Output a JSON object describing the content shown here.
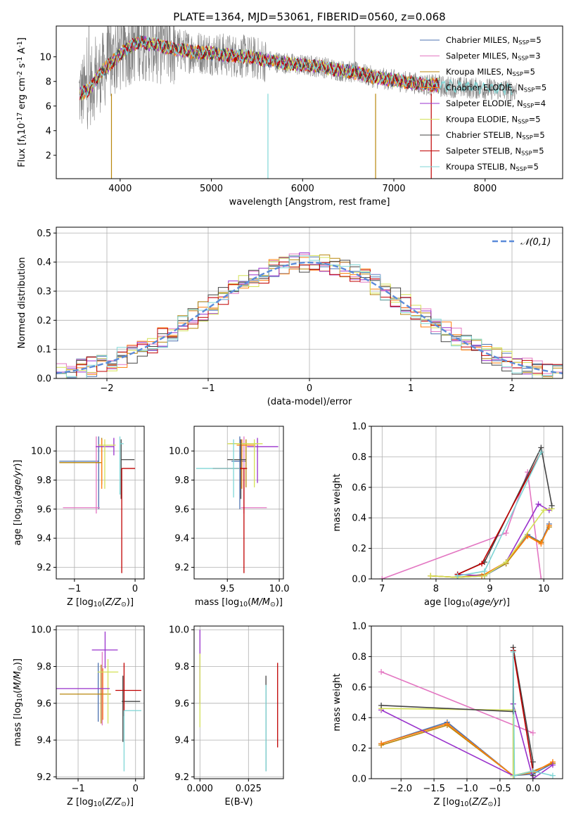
{
  "colors": {
    "Chabrier MILES": "#4c72b0",
    "Salpeter MILES": "#e377c2",
    "Kroupa MILES": "#b8860b",
    "Chabrier ELODIE": "#ff7f0e",
    "Salpeter ELODIE": "#9932cc",
    "Kroupa ELODIE": "#d4e157",
    "Chabrier STELIB": "#444444",
    "Salpeter STELIB": "#c00000",
    "Kroupa STELIB": "#7fd6d6",
    "observed": "#808080",
    "normal_curve": "#5b8bd9"
  },
  "chart_data": [
    {
      "id": "spectrum",
      "type": "line",
      "title": "PLATE=1364, MJD=53061, FIBERID=0560, z=0.068",
      "xlabel": "wavelength [Angstrom, rest frame]",
      "ylabel": "Flux [f$_\\lambda$10$^{-17}$ erg cm$^{-2}$ s$^{-1}$ A$^{-1}$]",
      "xlim": [
        3300,
        8850
      ],
      "ylim": [
        0.1,
        12.5
      ],
      "xticks": [
        4000,
        5000,
        6000,
        7000,
        8000
      ],
      "yticks": [
        2,
        4,
        6,
        8,
        10
      ],
      "legend_position": "upper right",
      "legend": [
        {
          "name": "Chabrier MILES",
          "n_ssp": 5
        },
        {
          "name": "Salpeter MILES",
          "n_ssp": 3
        },
        {
          "name": "Kroupa MILES",
          "n_ssp": 5
        },
        {
          "name": "Chabrier ELODIE",
          "n_ssp": 5
        },
        {
          "name": "Salpeter ELODIE",
          "n_ssp": 4
        },
        {
          "name": "Kroupa ELODIE",
          "n_ssp": 5
        },
        {
          "name": "Chabrier STELIB",
          "n_ssp": 5
        },
        {
          "name": "Salpeter STELIB",
          "n_ssp": 5
        },
        {
          "name": "Kroupa STELIB",
          "n_ssp": 5
        }
      ],
      "continuum": {
        "x": [
          3560,
          3650,
          3800,
          3900,
          4000,
          4100,
          4200,
          4400,
          4600,
          4800,
          5000,
          5200,
          5400,
          5600,
          5800,
          6000,
          6200,
          6400,
          6600,
          6800,
          7000,
          7200,
          7400,
          7500
        ],
        "y": [
          7.0,
          7.3,
          8.8,
          9.5,
          10.2,
          10.8,
          11.2,
          11.0,
          10.6,
          10.4,
          10.3,
          10.1,
          10.0,
          9.7,
          9.5,
          9.3,
          9.2,
          8.9,
          8.7,
          8.3,
          8.1,
          7.9,
          7.7,
          7.7
        ]
      },
      "observed_range": [
        3550,
        8350
      ],
      "grid": false
    },
    {
      "id": "residuals",
      "type": "line",
      "xlabel": "(data-model)/error",
      "ylabel": "Normed distribution",
      "xlim": [
        -2.5,
        2.5
      ],
      "ylim": [
        0,
        0.52
      ],
      "xticks": [
        -2,
        -1,
        0,
        1,
        2
      ],
      "yticks": [
        0.0,
        0.1,
        0.2,
        0.3,
        0.4,
        0.5
      ],
      "legend": [
        {
          "name": "$\\mathcal{N}(0,1)$",
          "style": "dashed"
        }
      ],
      "legend_position": "upper right",
      "bin_width": 0.1,
      "grid": true
    },
    {
      "id": "age_vs_Z",
      "type": "scatter",
      "xlabel": "Z [log$_{10}$($Z/Z_\\odot$)]",
      "ylabel": "age  [log$_{10}$($age/yr$)]",
      "xlim": [
        -1.3,
        0.15
      ],
      "ylim": [
        9.12,
        10.17
      ],
      "xticks": [
        -1,
        0
      ],
      "yticks": [
        9.2,
        9.4,
        9.6,
        9.8,
        10.0
      ],
      "grid": true,
      "points": [
        {
          "model": "Chabrier MILES",
          "x": -0.6,
          "y": 9.93,
          "xerr": [
            0.65,
            0.0
          ],
          "yerr": [
            0.33,
            0.17
          ]
        },
        {
          "model": "Salpeter MILES",
          "x": -0.64,
          "y": 9.61,
          "xerr": [
            0.55,
            0.06
          ],
          "yerr": [
            0.04,
            0.49
          ]
        },
        {
          "model": "Kroupa MILES",
          "x": -0.55,
          "y": 9.92,
          "xerr": [
            0.7,
            0.0
          ],
          "yerr": [
            0.15,
            0.17
          ]
        },
        {
          "model": "Chabrier ELODIE",
          "x": -0.55,
          "y": 10.04,
          "xerr": [
            0.05,
            0.0
          ],
          "yerr": [
            0.3,
            0.04
          ]
        },
        {
          "model": "Salpeter ELODIE",
          "x": -0.35,
          "y": 10.03,
          "xerr": [
            0.3,
            0.0
          ],
          "yerr": [
            0.06,
            0.06
          ]
        },
        {
          "model": "Kroupa ELODIE",
          "x": -0.5,
          "y": 10.04,
          "xerr": [
            0.1,
            0.18
          ],
          "yerr": [
            0.3,
            0.04
          ]
        },
        {
          "model": "Chabrier STELIB",
          "x": -0.23,
          "y": 9.94,
          "xerr": [
            0.0,
            0.22
          ],
          "yerr": [
            0.27,
            0.14
          ]
        },
        {
          "model": "Salpeter STELIB",
          "x": -0.22,
          "y": 9.88,
          "xerr": [
            0.0,
            0.22
          ],
          "yerr": [
            0.72,
            0.0
          ]
        },
        {
          "model": "Kroupa STELIB",
          "x": -0.25,
          "y": 10.05,
          "xerr": [
            0.0,
            0.06
          ],
          "yerr": [
            0.35,
            0.05
          ]
        }
      ]
    },
    {
      "id": "age_vs_mass",
      "type": "scatter",
      "xlabel": "mass [log$_{10}$($M/M_\\odot$)]",
      "xlim": [
        9.18,
        10.04
      ],
      "ylim": [
        9.12,
        10.17
      ],
      "xticks": [
        9.5,
        10.0
      ],
      "yticks": [
        9.2,
        9.4,
        9.6,
        9.8,
        10.0
      ],
      "grid": true,
      "points": [
        {
          "model": "Chabrier MILES",
          "x": 9.62,
          "y": 9.93,
          "xerr": [
            0.08,
            0.06
          ],
          "yerr": [
            0.33,
            0.17
          ]
        },
        {
          "model": "Salpeter MILES",
          "x": 9.66,
          "y": 9.61,
          "xerr": [
            0.03,
            0.22
          ],
          "yerr": [
            0.04,
            0.49
          ]
        },
        {
          "model": "Kroupa MILES",
          "x": 9.68,
          "y": 10.05,
          "xerr": [
            0.16,
            0.1
          ],
          "yerr": [
            0.3,
            0.03
          ]
        },
        {
          "model": "Chabrier ELODIE",
          "x": 9.64,
          "y": 10.04,
          "xerr": [
            0.05,
            0.13
          ],
          "yerr": [
            0.3,
            0.04
          ]
        },
        {
          "model": "Salpeter ELODIE",
          "x": 9.79,
          "y": 10.03,
          "xerr": [
            0.1,
            0.2
          ],
          "yerr": [
            0.25,
            0.06
          ]
        },
        {
          "model": "Kroupa ELODIE",
          "x": 9.76,
          "y": 10.05,
          "xerr": [
            0.26,
            0.08
          ],
          "yerr": [
            0.3,
            0.03
          ]
        },
        {
          "model": "Chabrier STELIB",
          "x": 9.63,
          "y": 9.94,
          "xerr": [
            0.13,
            0.05
          ],
          "yerr": [
            0.27,
            0.14
          ]
        },
        {
          "model": "Salpeter STELIB",
          "x": 9.66,
          "y": 9.88,
          "xerr": [
            0.3,
            0.03
          ],
          "yerr": [
            0.72,
            0.0
          ]
        },
        {
          "model": "Kroupa STELIB",
          "x": 9.56,
          "y": 9.88,
          "xerr": [
            0.36,
            0.06
          ],
          "yerr": [
            0.2,
            0.2
          ]
        }
      ]
    },
    {
      "id": "weight_vs_age",
      "type": "line",
      "xlabel": "age  [log$_{10}$($age/yr$)]",
      "ylabel": "mass weight",
      "xlim": [
        6.8,
        10.35
      ],
      "ylim": [
        0,
        1.0
      ],
      "xticks": [
        7,
        8,
        9,
        10
      ],
      "yticks": [
        0.0,
        0.2,
        0.4,
        0.6,
        0.8,
        1.0
      ],
      "grid": true,
      "series": [
        {
          "model": "Chabrier MILES",
          "x": [
            7.9,
            8.4,
            8.9,
            9.3,
            9.7,
            9.95,
            10.1
          ],
          "y": [
            0.02,
            0.01,
            0.02,
            0.1,
            0.29,
            0.24,
            0.36
          ]
        },
        {
          "model": "Salpeter MILES",
          "x": [
            7.0,
            9.3,
            9.7,
            9.95
          ],
          "y": [
            0.0,
            0.3,
            0.7,
            0.0
          ]
        },
        {
          "model": "Kroupa MILES",
          "x": [
            7.9,
            8.4,
            8.9,
            9.3,
            9.7,
            9.95,
            10.1
          ],
          "y": [
            0.02,
            0.01,
            0.03,
            0.1,
            0.28,
            0.24,
            0.34
          ]
        },
        {
          "model": "Chabrier ELODIE",
          "x": [
            7.9,
            8.4,
            8.85,
            9.3,
            9.7,
            9.95,
            10.1
          ],
          "y": [
            0.02,
            0.01,
            0.02,
            0.11,
            0.28,
            0.23,
            0.35
          ]
        },
        {
          "model": "Salpeter ELODIE",
          "x": [
            8.4,
            8.9,
            9.3,
            9.9,
            10.1
          ],
          "y": [
            0.03,
            0.02,
            0.11,
            0.49,
            0.45
          ]
        },
        {
          "model": "Kroupa ELODIE",
          "x": [
            7.9,
            8.4,
            8.9,
            9.3,
            10.0,
            10.15
          ],
          "y": [
            0.02,
            0.01,
            0.02,
            0.11,
            0.45,
            0.46
          ]
        },
        {
          "model": "Chabrier STELIB",
          "x": [
            8.4,
            8.9,
            9.95,
            10.15
          ],
          "y": [
            0.03,
            0.11,
            0.86,
            0.48
          ]
        },
        {
          "model": "Salpeter STELIB",
          "x": [
            8.4,
            8.85,
            9.95
          ],
          "y": [
            0.03,
            0.1,
            0.83
          ]
        },
        {
          "model": "Kroupa STELIB",
          "x": [
            8.4,
            8.9,
            9.95
          ],
          "y": [
            0.02,
            0.05,
            0.83
          ]
        }
      ]
    },
    {
      "id": "mass_vs_Z",
      "type": "scatter",
      "xlabel": "Z [log$_{10}$($Z/Z_\\odot$)]",
      "ylabel": "mass [log$_{10}$($M/M_\\odot$)]",
      "xlim": [
        -1.38,
        0.15
      ],
      "ylim": [
        9.19,
        10.02
      ],
      "xticks": [
        -1,
        0
      ],
      "yticks": [
        9.2,
        9.4,
        9.6,
        9.8,
        10.0
      ],
      "grid": true,
      "points": [
        {
          "model": "Chabrier MILES",
          "x": -0.65,
          "y": 9.68,
          "xerr": [
            0.0,
            0.0
          ],
          "yerr": [
            0.18,
            0.14
          ]
        },
        {
          "model": "Salpeter MILES",
          "x": -0.58,
          "y": 9.78,
          "xerr": [
            0.0,
            0.0
          ],
          "yerr": [
            0.3,
            0.1
          ]
        },
        {
          "model": "Kroupa MILES",
          "x": -0.6,
          "y": 9.65,
          "xerr": [
            0.72,
            0.17
          ],
          "yerr": [
            0.16,
            0.16
          ]
        },
        {
          "model": "Chabrier ELODIE",
          "x": -0.57,
          "y": 9.65,
          "xerr": [
            0.0,
            0.0
          ],
          "yerr": [
            0.14,
            0.14
          ]
        },
        {
          "model": "Salpeter ELODIE",
          "x": -0.53,
          "y": 9.89,
          "xerr": [
            0.23,
            0.22
          ],
          "yerr": [
            0.1,
            0.1
          ]
        },
        {
          "model": "Kroupa ELODIE",
          "x": -0.48,
          "y": 9.77,
          "xerr": [
            0.18,
            0.18
          ],
          "yerr": [
            0.28,
            0.07
          ]
        },
        {
          "model": "Chabrier STELIB",
          "x": -0.22,
          "y": 9.61,
          "xerr": [
            0.02,
            0.3
          ],
          "yerr": [
            0.22,
            0.14
          ]
        },
        {
          "model": "Salpeter STELIB",
          "x": -0.2,
          "y": 9.67,
          "xerr": [
            0.15,
            0.3
          ],
          "yerr": [
            0.14,
            0.15
          ]
        },
        {
          "model": "Kroupa STELIB",
          "x": -0.2,
          "y": 9.56,
          "xerr": [
            0.0,
            0.3
          ],
          "yerr": [
            0.33,
            0.0
          ]
        },
        {
          "model": "Salpeter ELODIE",
          "x": -0.9,
          "y": 9.68,
          "xerr": [
            0.5,
            0.45
          ],
          "yerr": [
            0.0,
            0.0
          ]
        }
      ]
    },
    {
      "id": "mass_vs_ebv",
      "type": "scatter",
      "xlabel": "E(B-V)",
      "xlim": [
        -0.003,
        0.043
      ],
      "ylim": [
        9.19,
        10.02
      ],
      "xticks": [
        0.0,
        0.025
      ],
      "yticks": [
        9.2,
        9.4,
        9.6,
        9.8,
        10.0
      ],
      "grid": true,
      "points": [
        {
          "model": "Salpeter ELODIE",
          "x": 0.0,
          "y": 9.75,
          "yerr": [
            0.15,
            0.25
          ]
        },
        {
          "model": "Kroupa ELODIE",
          "x": 0.0,
          "y": 9.65,
          "yerr": [
            0.18,
            0.22
          ]
        },
        {
          "model": "Chabrier STELIB",
          "x": 0.034,
          "y": 9.5,
          "yerr": [
            0.27,
            0.25
          ]
        },
        {
          "model": "Kroupa STELIB",
          "x": 0.034,
          "y": 9.5,
          "yerr": [
            0.27,
            0.2
          ]
        },
        {
          "model": "Salpeter STELIB",
          "x": 0.04,
          "y": 9.58,
          "yerr": [
            0.22,
            0.24
          ]
        }
      ]
    },
    {
      "id": "weight_vs_Z",
      "type": "line",
      "xlabel": "Z [log$_{10}$($Z/Z_\\odot$)]",
      "ylabel": "mass weight",
      "xlim": [
        -2.45,
        0.45
      ],
      "ylim": [
        0,
        1.0
      ],
      "xticks": [
        -2.0,
        -1.5,
        -1.0,
        -0.5,
        0.0
      ],
      "yticks": [
        0.0,
        0.2,
        0.4,
        0.6,
        0.8,
        1.0
      ],
      "grid": true,
      "series": [
        {
          "model": "Chabrier MILES",
          "x": [
            -2.3,
            -1.3,
            -0.3,
            0.0,
            0.3
          ],
          "y": [
            0.23,
            0.37,
            0.02,
            0.03,
            0.1
          ]
        },
        {
          "model": "Salpeter MILES",
          "x": [
            -2.3,
            0.0
          ],
          "y": [
            0.7,
            0.3
          ]
        },
        {
          "model": "Kroupa MILES",
          "x": [
            -2.3,
            -1.3,
            -0.3,
            0.0,
            0.3
          ],
          "y": [
            0.22,
            0.35,
            0.02,
            0.05,
            0.1
          ]
        },
        {
          "model": "Chabrier ELODIE",
          "x": [
            -2.3,
            -1.3,
            -0.3,
            0.0,
            0.3
          ],
          "y": [
            0.23,
            0.36,
            0.02,
            0.04,
            0.11
          ]
        },
        {
          "model": "Salpeter ELODIE",
          "x": [
            -2.3,
            -0.3,
            -0.3,
            0.0,
            0.3
          ],
          "y": [
            0.45,
            0.02,
            0.49,
            0.0,
            0.09
          ]
        },
        {
          "model": "Kroupa ELODIE",
          "x": [
            -2.3,
            -0.3,
            -0.3,
            0.0
          ],
          "y": [
            0.46,
            0.45,
            0.02,
            0.05
          ]
        },
        {
          "model": "Chabrier STELIB",
          "x": [
            -2.3,
            -0.3,
            -0.3,
            0.0,
            0.0
          ],
          "y": [
            0.48,
            0.44,
            0.86,
            0.11,
            0.02
          ]
        },
        {
          "model": "Salpeter STELIB",
          "x": [
            -0.3,
            0.0
          ],
          "y": [
            0.84,
            0.05
          ]
        },
        {
          "model": "Kroupa STELIB",
          "x": [
            -0.3,
            -0.28,
            0.0,
            0.3
          ],
          "y": [
            0.83,
            0.02,
            0.05,
            0.02
          ]
        }
      ]
    }
  ]
}
